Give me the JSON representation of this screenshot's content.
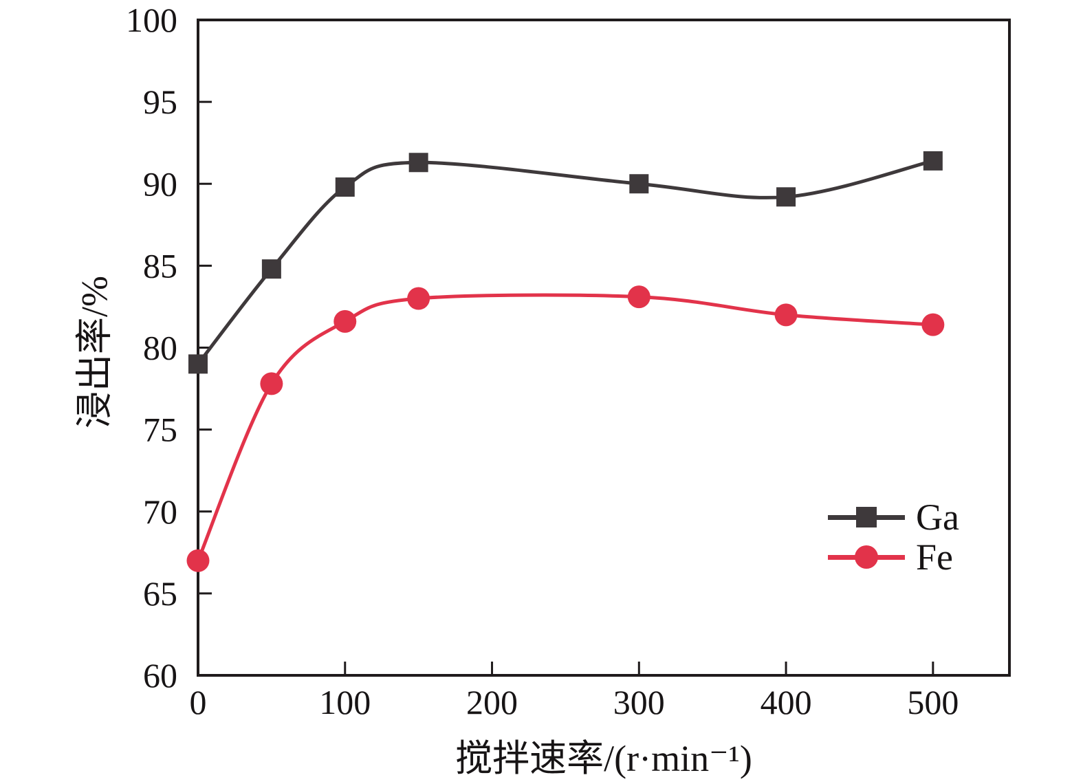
{
  "chart_data": {
    "type": "line",
    "title": "",
    "xlabel": "搅拌速率/(r·min⁻¹)",
    "ylabel": "浸出率/%",
    "x": [
      0,
      50,
      100,
      150,
      300,
      400,
      500
    ],
    "series": [
      {
        "name": "Ga",
        "color": "#3e393b",
        "marker": "square",
        "values": [
          79.0,
          84.8,
          89.8,
          91.3,
          90.0,
          89.2,
          91.4
        ]
      },
      {
        "name": "Fe",
        "color": "#e2334a",
        "marker": "circle",
        "values": [
          67.0,
          77.8,
          81.6,
          83.0,
          83.1,
          82.0,
          81.4
        ]
      }
    ],
    "xticks": [
      0,
      100,
      200,
      300,
      400,
      500
    ],
    "yticks": [
      60,
      65,
      70,
      75,
      80,
      85,
      90,
      95,
      100
    ],
    "xlim": [
      0,
      552
    ],
    "ylim": [
      60,
      100
    ],
    "grid": false,
    "legend_position": "right-center",
    "frame_color": "#1f1b1c",
    "background": "#ffffff"
  }
}
